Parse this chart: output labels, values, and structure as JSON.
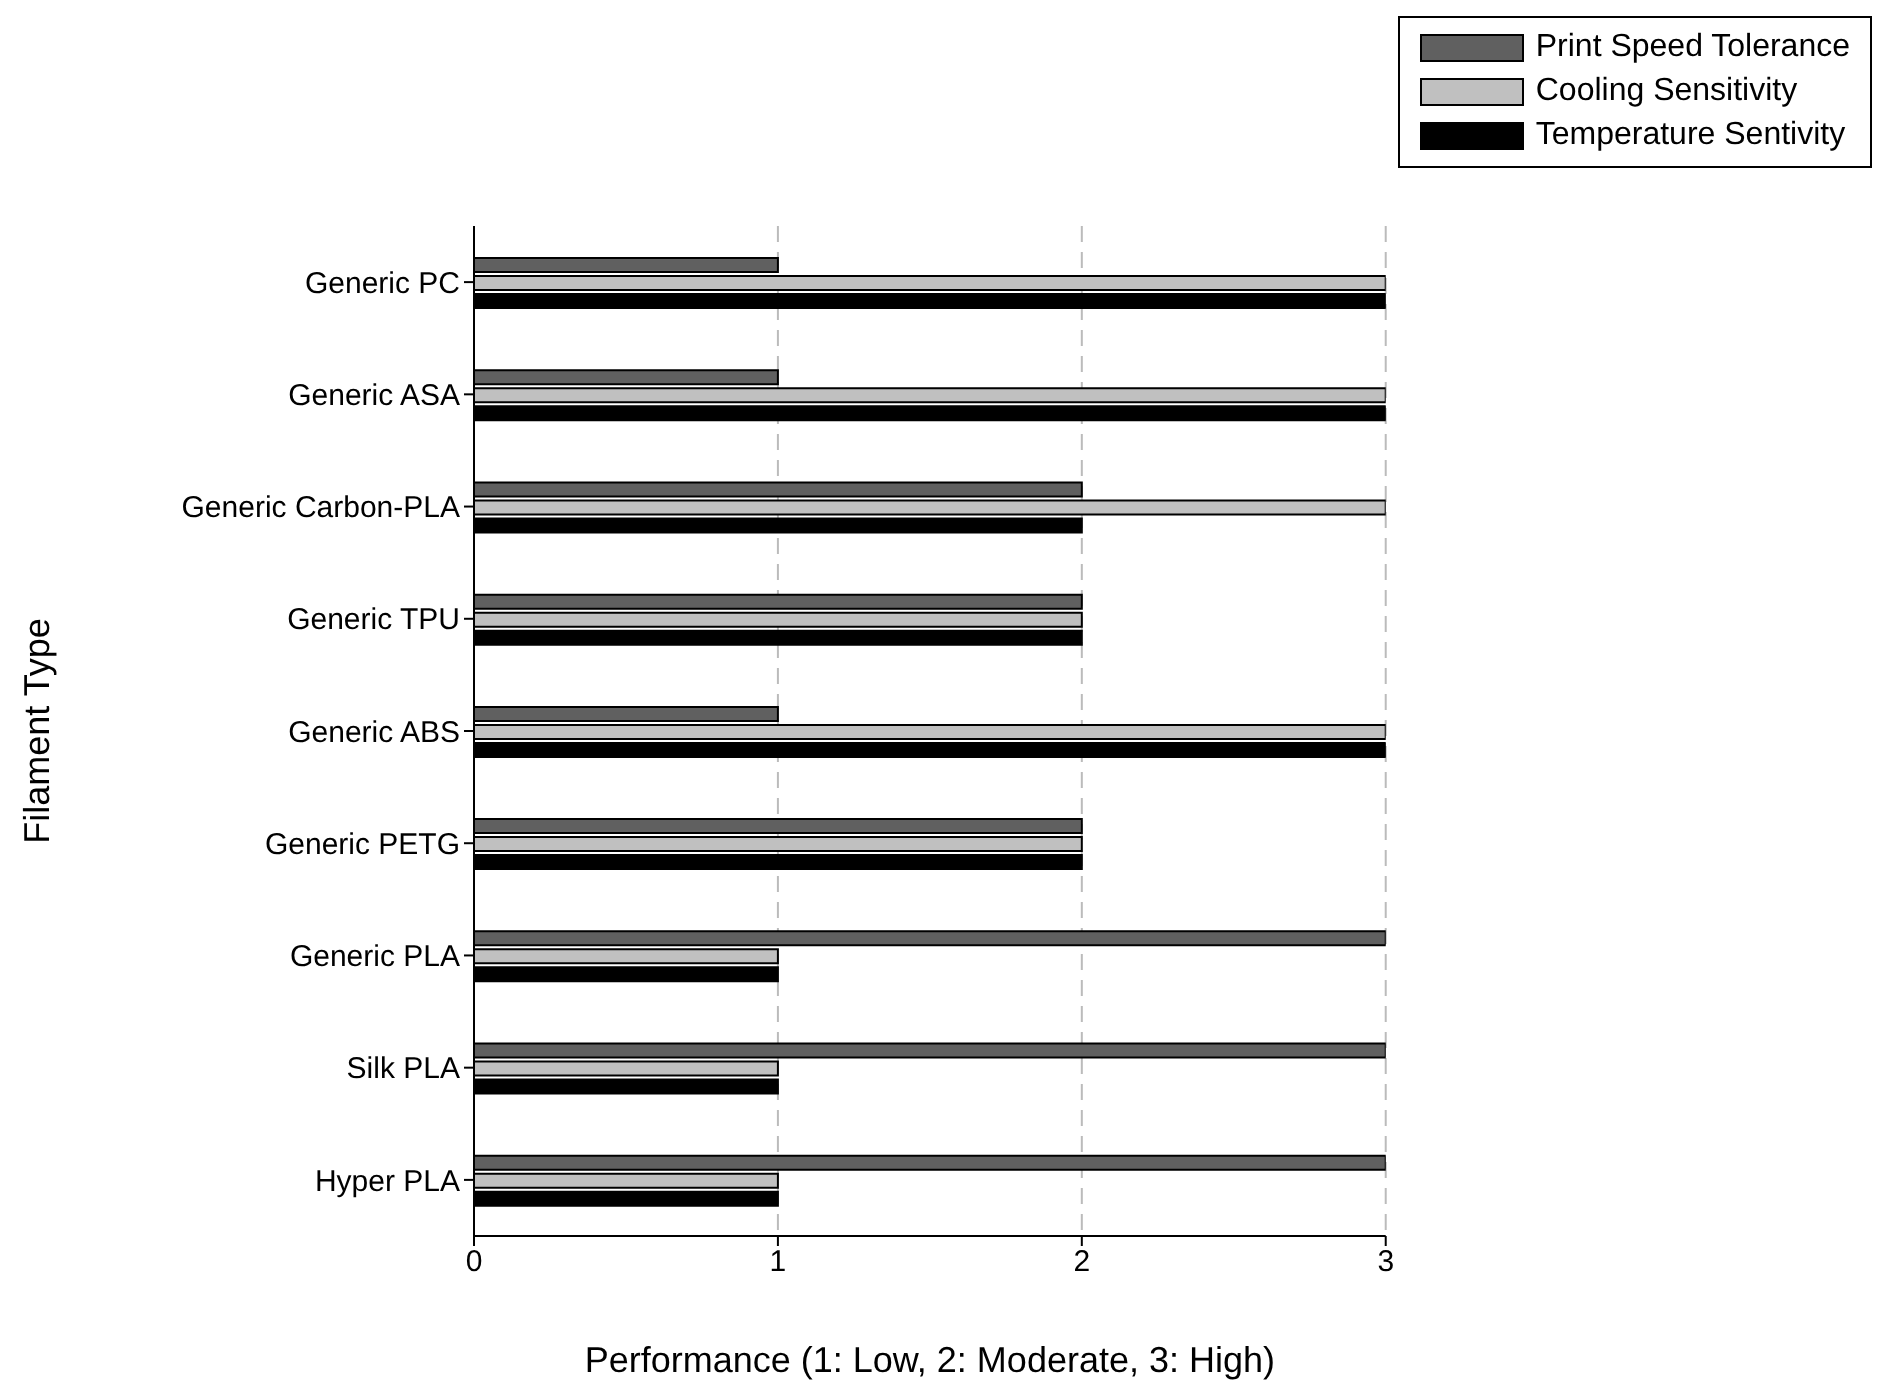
{
  "chart_data": {
    "type": "bar",
    "orientation": "horizontal",
    "xlabel": "Performance (1: Low, 2: Moderate, 3: High)",
    "ylabel": "Filament Type",
    "categories": [
      "Generic PC",
      "Generic ASA",
      "Generic Carbon-PLA",
      "Generic TPU",
      "Generic ABS",
      "Generic PETG",
      "Generic PLA",
      "Silk PLA",
      "Hyper PLA"
    ],
    "series": [
      {
        "name": "Print Speed Tolerance",
        "color": "#606060",
        "values": [
          1,
          1,
          2,
          2,
          1,
          2,
          3,
          3,
          3
        ]
      },
      {
        "name": "Cooling Sensitivity",
        "color": "#c0c0c0",
        "values": [
          3,
          3,
          3,
          2,
          3,
          2,
          1,
          1,
          1
        ]
      },
      {
        "name": "Temperature Sentivity",
        "color": "#000000",
        "values": [
          3,
          3,
          2,
          2,
          3,
          2,
          1,
          1,
          1
        ]
      }
    ],
    "xlim": [
      0,
      3
    ],
    "xticks": [
      0,
      1,
      2,
      3
    ],
    "grid": "x",
    "legend": "top right"
  }
}
